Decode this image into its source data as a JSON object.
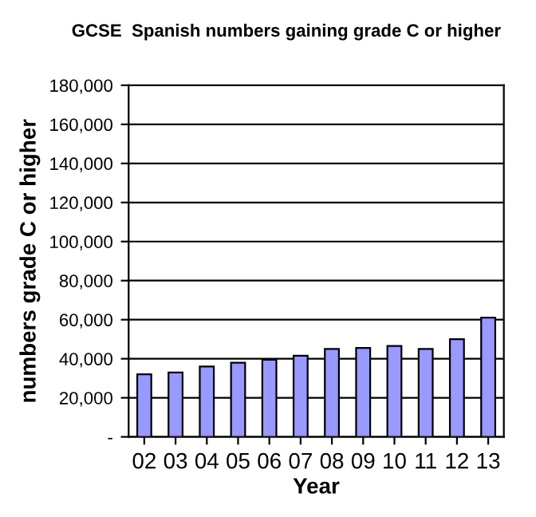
{
  "chart_data": {
    "type": "bar",
    "title": "GCSE  Spanish numbers gaining grade C or higher",
    "xlabel": "Year",
    "ylabel": "numbers grade C or higher",
    "categories": [
      "02",
      "03",
      "04",
      "05",
      "06",
      "07",
      "08",
      "09",
      "10",
      "11",
      "12",
      "13"
    ],
    "values": [
      32000,
      33000,
      36000,
      38000,
      39500,
      41500,
      45000,
      45500,
      46500,
      45000,
      50000,
      61000
    ],
    "color": "#9999ff",
    "ylim": [
      0,
      180000
    ],
    "yticks": [
      {
        "value": 0,
        "label": "-"
      },
      {
        "value": 20000,
        "label": "20,000"
      },
      {
        "value": 40000,
        "label": "40,000"
      },
      {
        "value": 60000,
        "label": "60,000"
      },
      {
        "value": 80000,
        "label": "80,000"
      },
      {
        "value": 100000,
        "label": "100,000"
      },
      {
        "value": 120000,
        "label": "120,000"
      },
      {
        "value": 140000,
        "label": "140,000"
      },
      {
        "value": 160000,
        "label": "160,000"
      },
      {
        "value": 180000,
        "label": "180,000"
      }
    ],
    "grid": "y"
  }
}
